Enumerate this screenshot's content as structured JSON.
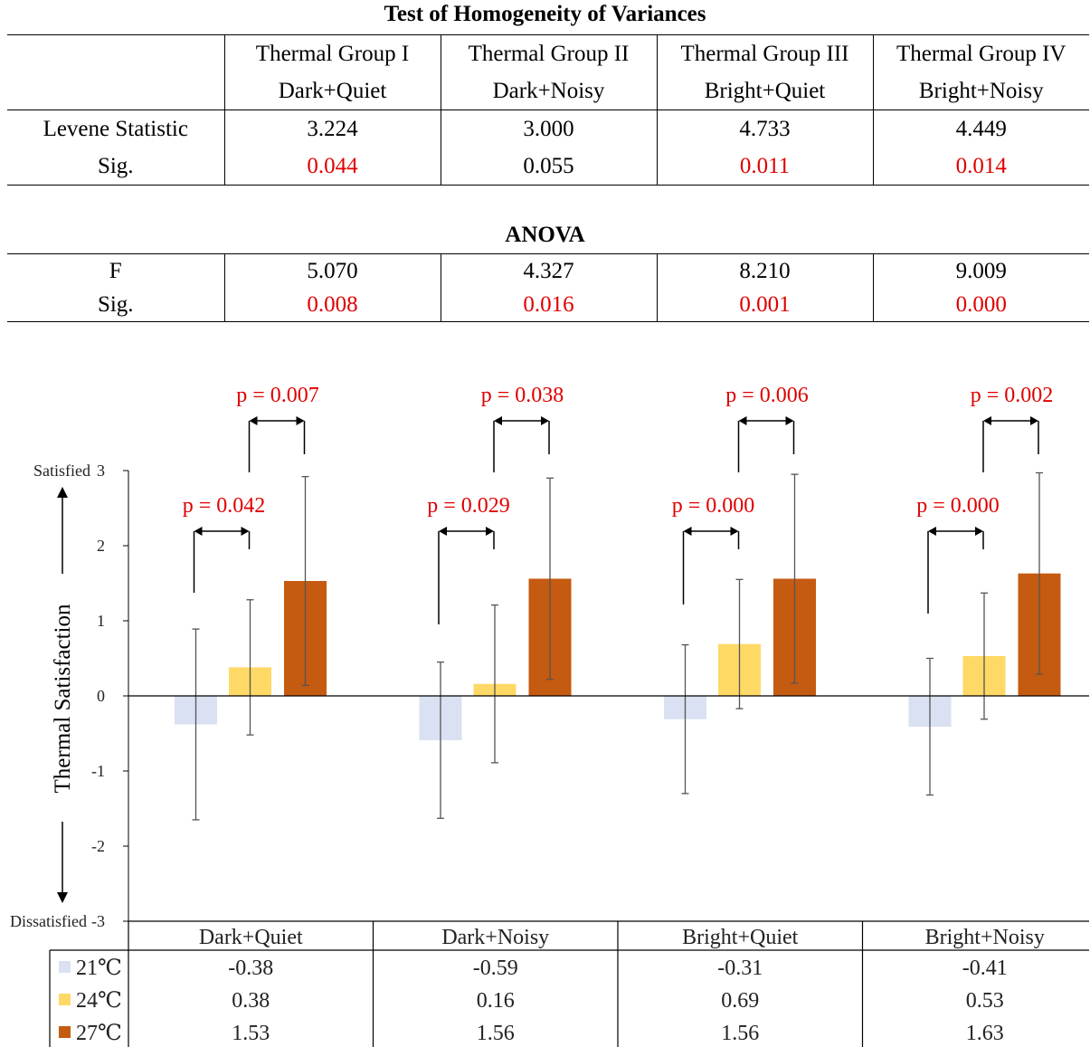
{
  "homogeneity": {
    "title": "Test of Homogeneity of Variances",
    "groups": [
      {
        "name": "Thermal Group I",
        "sub": "Dark+Quiet"
      },
      {
        "name": "Thermal Group II",
        "sub": "Dark+Noisy"
      },
      {
        "name": "Thermal Group III",
        "sub": "Bright+Quiet"
      },
      {
        "name": "Thermal Group IV",
        "sub": "Bright+Noisy"
      }
    ],
    "rows": [
      {
        "label": "Levene Statistic",
        "values": [
          "3.224",
          "3.000",
          "4.733",
          "4.449"
        ]
      },
      {
        "label": "Sig.",
        "values": [
          "0.044",
          "0.055",
          "0.011",
          "0.014"
        ]
      }
    ]
  },
  "anova": {
    "title": "ANOVA",
    "rows": [
      {
        "label": "F",
        "values": [
          "5.070",
          "4.327",
          "8.210",
          "9.009"
        ]
      },
      {
        "label": "Sig.",
        "values": [
          "0.008",
          "0.016",
          "0.001",
          "0.000"
        ]
      }
    ]
  },
  "colors": {
    "significant": "#e00000",
    "c21": "#d9e1f2",
    "c24": "#ffd966",
    "c27": "#c55a11"
  },
  "chart_data": {
    "type": "bar",
    "ylabel": "Thermal Satisfaction",
    "ylim": [
      -3,
      3
    ],
    "yticks": [
      "-3",
      "-2",
      "-1",
      "0",
      "1",
      "2",
      "3"
    ],
    "top_label": "Satisfied",
    "bottom_label": "Dissatisfied",
    "categories": [
      "Dark+Quiet",
      "Dark+Noisy",
      "Bright+Quiet",
      "Bright+Noisy"
    ],
    "series": [
      {
        "name": "21℃",
        "values": [
          -0.38,
          -0.59,
          -0.31,
          -0.41
        ],
        "low": [
          -1.65,
          -1.63,
          -1.3,
          -1.32
        ],
        "high": [
          0.89,
          0.45,
          0.68,
          0.5
        ]
      },
      {
        "name": "24℃",
        "values": [
          0.38,
          0.16,
          0.69,
          0.53
        ],
        "low": [
          -0.52,
          -0.89,
          -0.17,
          -0.31
        ],
        "high": [
          1.28,
          1.21,
          1.55,
          1.37
        ]
      },
      {
        "name": "27℃",
        "values": [
          1.53,
          1.56,
          1.56,
          1.63
        ],
        "low": [
          0.14,
          0.22,
          0.17,
          0.29
        ],
        "high": [
          2.92,
          2.9,
          2.95,
          2.97
        ]
      }
    ],
    "table_values": [
      [
        "-0.38",
        "-0.59",
        "-0.31",
        "-0.41"
      ],
      [
        "0.38",
        "0.16",
        "0.69",
        "0.53"
      ],
      [
        "1.53",
        "1.56",
        "1.56",
        "1.63"
      ]
    ],
    "comparisons": [
      {
        "upper": "p = 0.007",
        "lower": "p = 0.042"
      },
      {
        "upper": "p = 0.038",
        "lower": "p = 0.029"
      },
      {
        "upper": "p = 0.006",
        "lower": "p = 0.000"
      },
      {
        "upper": "p = 0.002",
        "lower": "p = 0.000"
      }
    ]
  }
}
